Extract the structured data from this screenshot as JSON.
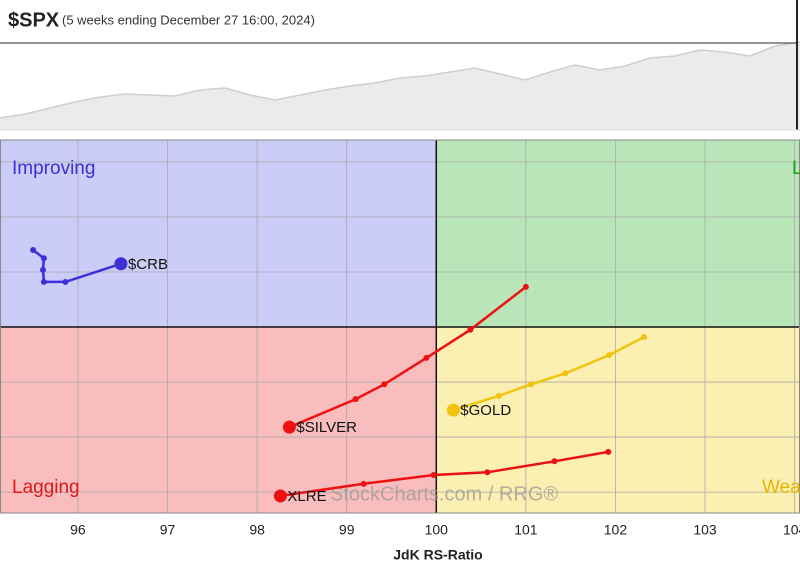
{
  "chart_data": [
    {
      "type": "area",
      "title": "$SPX",
      "subtitle": "(5 weeks ending December 27 16:00, 2024)",
      "values": [
        12,
        16,
        22,
        28,
        33,
        36,
        35,
        34,
        40,
        42,
        35,
        30,
        35,
        40,
        44,
        47,
        52,
        54,
        58,
        62,
        56,
        50,
        58,
        65,
        60,
        64,
        72,
        74,
        80,
        78,
        74,
        84,
        88
      ],
      "ylim": [
        0,
        130
      ],
      "color": "#cfcfcf"
    },
    {
      "type": "rrg",
      "xlabel": "JdK RS-Ratio",
      "watermark": "StockCharts.com / RRG®",
      "quadrants": {
        "improving": "Improving",
        "leading": "Leading",
        "lagging": "Lagging",
        "weakening": "Weakening"
      },
      "xlim": [
        95.13,
        104.06
      ],
      "xticks": [
        96,
        97,
        98,
        99,
        100,
        101,
        102,
        103,
        104
      ],
      "ylim": [
        96.62,
        103.4
      ],
      "yticks": [
        97,
        98,
        99,
        100,
        101,
        102,
        103
      ],
      "grid": true,
      "series": [
        {
          "name": "$CRB",
          "color": "#3b2fd6",
          "x": [
            95.5,
            95.62,
            95.61,
            95.62,
            95.86,
            96.48
          ],
          "values": [
            101.4,
            101.25,
            101.04,
            100.82,
            100.82,
            101.15
          ]
        },
        {
          "name": "$SILVER",
          "color": "#ee1111",
          "x": [
            101.0,
            100.38,
            99.89,
            99.42,
            99.1,
            98.36
          ],
          "values": [
            100.73,
            99.95,
            99.44,
            98.96,
            98.69,
            98.18
          ]
        },
        {
          "name": "XLRE",
          "color": "#ee1111",
          "x": [
            101.92,
            101.32,
            100.57,
            99.97,
            99.19,
            98.26
          ],
          "values": [
            97.73,
            97.56,
            97.36,
            97.31,
            97.15,
            96.93
          ]
        },
        {
          "name": "$GOLD",
          "color": "#f2c40f",
          "x": [
            102.32,
            101.93,
            101.44,
            101.06,
            100.7,
            100.19
          ],
          "values": [
            99.82,
            99.49,
            99.16,
            98.96,
            98.75,
            98.49
          ]
        }
      ]
    }
  ]
}
